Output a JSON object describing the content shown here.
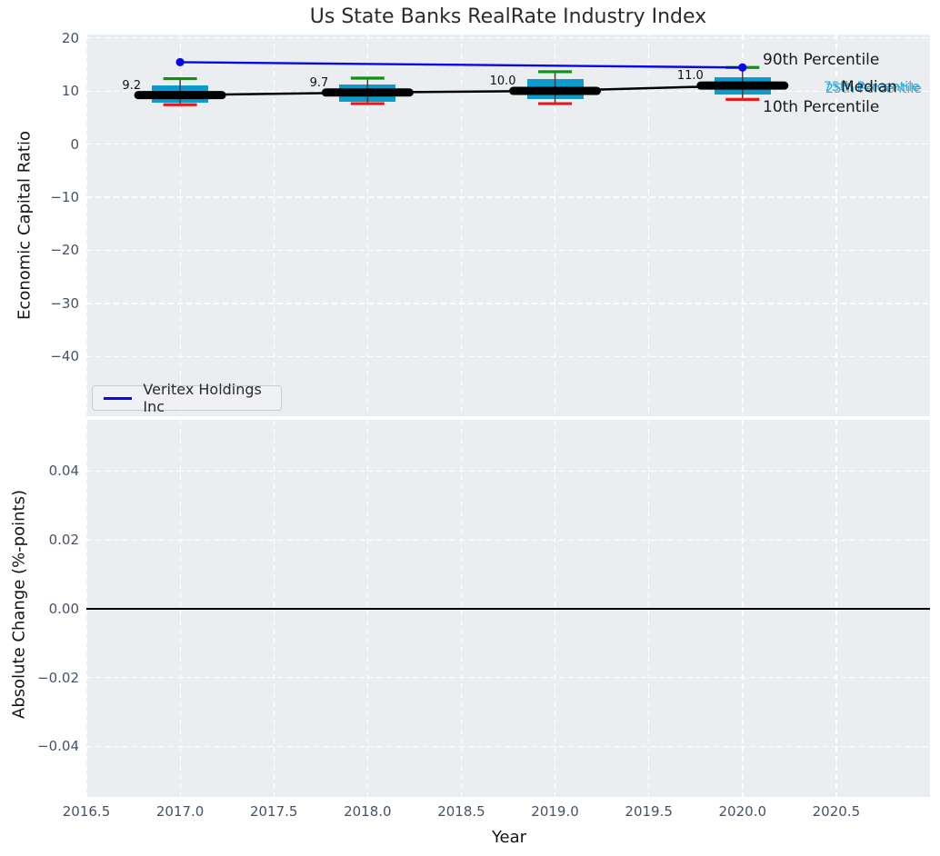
{
  "colors": {
    "figure_bg": "#ffffff",
    "plot_bg": "#ebeef0",
    "grid": "#ffffff",
    "tick_label": "#43536b",
    "title_text": "#2b2b2b",
    "axis_label_text": "#151515",
    "company_line": "#0707e8",
    "box_fill": "#0d9acc",
    "whisker_line": "#404040",
    "whisker_cap_top": "#0b930b",
    "whisker_cap_bottom": "#e61a1a",
    "median_color": "#000000",
    "cyan_label": "#2ba8d9",
    "zero_line": "#000000"
  },
  "chart_data": [
    {
      "type": "boxplot",
      "title": "Us State Banks RealRate Industry Index",
      "ylabel": "Economic Capital Ratio",
      "xlim": [
        2016.5,
        2021.0
      ],
      "ylim": [
        -51.2,
        20.6
      ],
      "grid": "white dashed, on",
      "ytick_labels": [
        "20",
        "10",
        "0",
        "−10",
        "−20",
        "−30",
        "−40"
      ],
      "ytick_values": [
        20,
        10,
        0,
        -10,
        -20,
        -30,
        -40
      ],
      "xtick_values": [
        2016.5,
        2017.0,
        2017.5,
        2018.0,
        2018.5,
        2019.0,
        2019.5,
        2020.0,
        2020.5
      ],
      "categories": [
        2017,
        2018,
        2019,
        2020
      ],
      "boxes": [
        {
          "year": 2017,
          "p90": 12.3,
          "p75": 11.1,
          "median": 9.2,
          "p25": 7.7,
          "p10": 7.4,
          "label": "9.2"
        },
        {
          "year": 2018,
          "p90": 12.4,
          "p75": 11.2,
          "median": 9.7,
          "p25": 8.0,
          "p10": 7.6,
          "label": "9.7"
        },
        {
          "year": 2019,
          "p90": 13.6,
          "p75": 12.2,
          "median": 10.0,
          "p25": 8.5,
          "p10": 7.6,
          "label": "10.0"
        },
        {
          "year": 2020,
          "p90": 14.4,
          "p75": 12.5,
          "median": 11.0,
          "p25": 9.4,
          "p10": 8.4,
          "label": "11.0"
        }
      ],
      "series": [
        {
          "name": "Veritex Holdings Inc",
          "x": [
            2017,
            2020
          ],
          "y": [
            15.4,
            14.4
          ],
          "marker": "o"
        }
      ],
      "legend": {
        "position": "lower left",
        "label": "Veritex Holdings Inc"
      },
      "right_labels": {
        "p90": "90th Percentile",
        "p75": "75th Percentile",
        "median": "Median",
        "p25": "25th Percentile",
        "p10": "10th Percentile"
      }
    },
    {
      "type": "line",
      "xlabel": "Year",
      "ylabel": "Absolute Change (%-points)",
      "xlim": [
        2016.5,
        2021.0
      ],
      "ylim": [
        -0.0547,
        0.0549
      ],
      "grid": "white dashed, on",
      "ytick_labels": [
        "0.04",
        "0.02",
        "0.00",
        "−0.02",
        "−0.04"
      ],
      "ytick_values": [
        0.04,
        0.02,
        0.0,
        -0.02,
        -0.04
      ],
      "xtick_labels": [
        "2016.5",
        "2017.0",
        "2017.5",
        "2018.0",
        "2018.5",
        "2019.0",
        "2019.5",
        "2020.0",
        "2020.5"
      ],
      "xtick_values": [
        2016.5,
        2017.0,
        2017.5,
        2018.0,
        2018.5,
        2019.0,
        2019.5,
        2020.0,
        2020.5
      ],
      "zero_line": 0.0,
      "series": []
    }
  ]
}
